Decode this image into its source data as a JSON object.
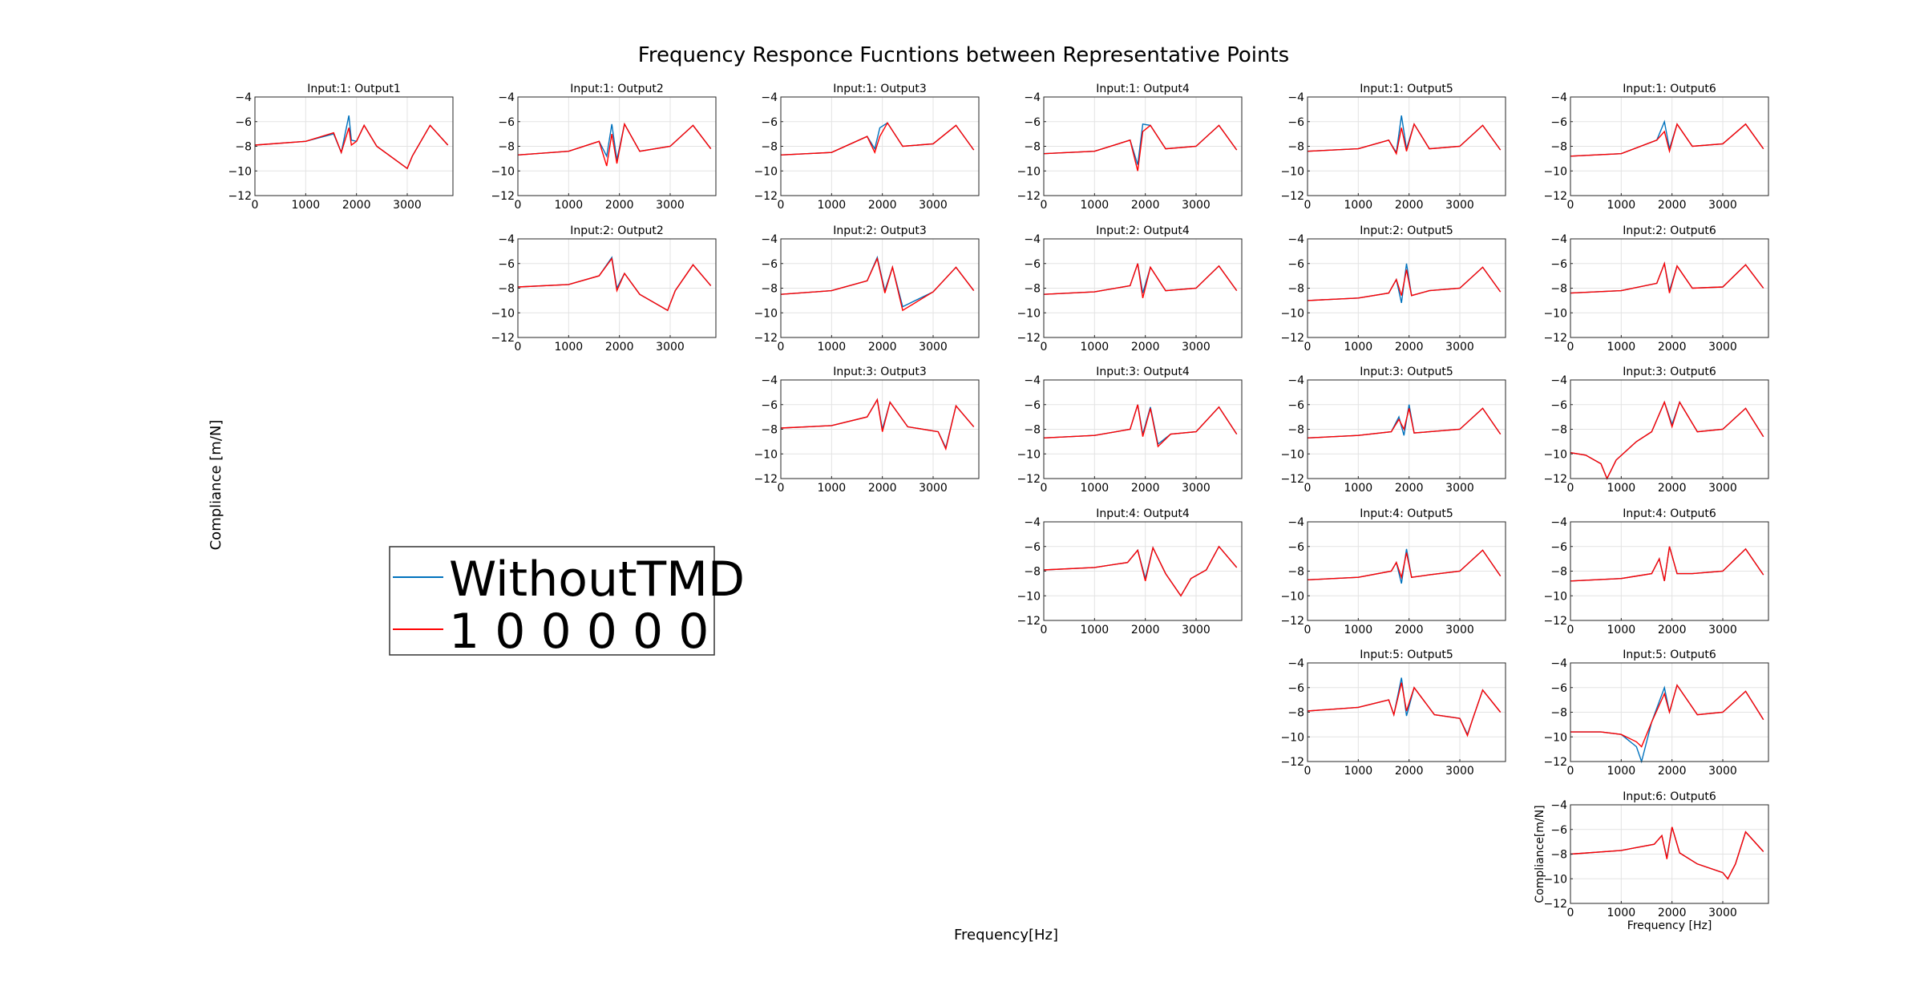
{
  "figure": {
    "title": "Frequency Responce Fucntions between Representative Points",
    "xlabel": "Frequency[Hz]",
    "ylabel": "Compliance [m/N]"
  },
  "legend": {
    "entries": [
      {
        "label": "WithoutTMD",
        "color": "#0072BD"
      },
      {
        "label": "1 0 0 0 0 0",
        "color": "#FF0000"
      }
    ]
  },
  "colors": {
    "without_tmd": "#0072BD",
    "with_tmd": "#FF0000",
    "grid": "#e3e3e3"
  },
  "chart_data": {
    "type": "line",
    "series_names": [
      "WithoutTMD",
      "1 0 0 0 0 0"
    ],
    "xlim": [
      0,
      3900
    ],
    "ylim": [
      -12,
      -4
    ],
    "xticks": [
      0,
      1000,
      2000,
      3000
    ],
    "yticks": [
      -4,
      -6,
      -8,
      -10,
      -12
    ],
    "grid": true,
    "panels": [
      {
        "input": 1,
        "output": 1,
        "title": "Input:1: Output1",
        "x": [
          0,
          1000,
          1550,
          1700,
          1850,
          1900,
          2000,
          2150,
          2400,
          3000,
          3100,
          3450,
          3800
        ],
        "without_tmd": [
          -7.9,
          -7.6,
          -7.0,
          -8.5,
          -5.5,
          -7.5,
          -7.6,
          -6.3,
          -8.0,
          -9.8,
          -8.8,
          -6.3,
          -7.9
        ],
        "with_tmd": [
          -7.9,
          -7.6,
          -6.9,
          -8.5,
          -6.5,
          -7.9,
          -7.6,
          -6.3,
          -8.0,
          -9.8,
          -8.8,
          -6.3,
          -7.9
        ]
      },
      {
        "input": 1,
        "output": 2,
        "title": "Input:1: Output2",
        "x": [
          0,
          1000,
          1600,
          1750,
          1850,
          1950,
          2100,
          2400,
          3000,
          3450,
          3800
        ],
        "without_tmd": [
          -8.7,
          -8.4,
          -7.6,
          -8.8,
          -6.2,
          -9.1,
          -6.2,
          -8.4,
          -8.0,
          -6.3,
          -8.2
        ],
        "with_tmd": [
          -8.7,
          -8.4,
          -7.6,
          -9.6,
          -7.0,
          -9.4,
          -6.2,
          -8.4,
          -8.0,
          -6.3,
          -8.2
        ]
      },
      {
        "input": 1,
        "output": 3,
        "title": "Input:1: Output3",
        "x": [
          0,
          1000,
          1700,
          1850,
          1950,
          2100,
          2400,
          3000,
          3450,
          3800
        ],
        "without_tmd": [
          -8.7,
          -8.5,
          -7.2,
          -8.2,
          -6.5,
          -6.1,
          -8.0,
          -7.8,
          -6.3,
          -8.3
        ],
        "with_tmd": [
          -8.7,
          -8.5,
          -7.2,
          -8.5,
          -7.2,
          -6.1,
          -8.0,
          -7.8,
          -6.3,
          -8.3
        ]
      },
      {
        "input": 1,
        "output": 4,
        "title": "Input:1: Output4",
        "x": [
          0,
          1000,
          1700,
          1850,
          1950,
          2100,
          2400,
          3000,
          3450,
          3800
        ],
        "without_tmd": [
          -8.6,
          -8.4,
          -7.5,
          -9.5,
          -6.2,
          -6.3,
          -8.2,
          -8.0,
          -6.3,
          -8.3
        ],
        "with_tmd": [
          -8.6,
          -8.4,
          -7.5,
          -10.0,
          -6.8,
          -6.3,
          -8.2,
          -8.0,
          -6.3,
          -8.3
        ]
      },
      {
        "input": 1,
        "output": 5,
        "title": "Input:1: Output5",
        "x": [
          0,
          1000,
          1600,
          1750,
          1850,
          1950,
          2100,
          2400,
          3000,
          3450,
          3800
        ],
        "without_tmd": [
          -8.4,
          -8.2,
          -7.5,
          -8.5,
          -5.5,
          -8.2,
          -6.2,
          -8.2,
          -8.0,
          -6.3,
          -8.3
        ],
        "with_tmd": [
          -8.4,
          -8.2,
          -7.5,
          -8.6,
          -6.5,
          -8.4,
          -6.2,
          -8.2,
          -8.0,
          -6.3,
          -8.3
        ]
      },
      {
        "input": 1,
        "output": 6,
        "title": "Input:1: Output6",
        "x": [
          0,
          1000,
          1700,
          1850,
          1950,
          2100,
          2400,
          3000,
          3450,
          3800
        ],
        "without_tmd": [
          -8.8,
          -8.6,
          -7.5,
          -6.0,
          -8.2,
          -6.2,
          -8.0,
          -7.8,
          -6.2,
          -8.2
        ],
        "with_tmd": [
          -8.8,
          -8.6,
          -7.5,
          -6.8,
          -8.4,
          -6.2,
          -8.0,
          -7.8,
          -6.2,
          -8.2
        ]
      },
      {
        "input": 2,
        "output": 2,
        "title": "Input:2: Output2",
        "x": [
          0,
          1000,
          1600,
          1850,
          1950,
          2100,
          2400,
          2950,
          3100,
          3450,
          3800
        ],
        "without_tmd": [
          -7.9,
          -7.7,
          -7.0,
          -5.5,
          -8.0,
          -6.8,
          -8.5,
          -9.8,
          -8.2,
          -6.1,
          -7.8
        ],
        "with_tmd": [
          -7.9,
          -7.7,
          -7.0,
          -5.6,
          -8.2,
          -6.8,
          -8.5,
          -9.8,
          -8.2,
          -6.1,
          -7.8
        ]
      },
      {
        "input": 2,
        "output": 3,
        "title": "Input:2: Output3",
        "x": [
          0,
          1000,
          1700,
          1900,
          2050,
          2200,
          2400,
          3000,
          3450,
          3800
        ],
        "without_tmd": [
          -8.5,
          -8.2,
          -7.4,
          -5.5,
          -8.2,
          -6.3,
          -9.5,
          -8.3,
          -6.3,
          -8.2
        ],
        "with_tmd": [
          -8.5,
          -8.2,
          -7.4,
          -5.6,
          -8.4,
          -6.3,
          -9.8,
          -8.3,
          -6.3,
          -8.2
        ]
      },
      {
        "input": 2,
        "output": 4,
        "title": "Input:2: Output4",
        "x": [
          0,
          1000,
          1700,
          1850,
          1950,
          2100,
          2400,
          3000,
          3450,
          3800
        ],
        "without_tmd": [
          -8.5,
          -8.3,
          -7.8,
          -6.0,
          -8.4,
          -6.3,
          -8.2,
          -8.0,
          -6.2,
          -8.2
        ],
        "with_tmd": [
          -8.5,
          -8.3,
          -7.8,
          -6.0,
          -8.8,
          -6.3,
          -8.2,
          -8.0,
          -6.2,
          -8.2
        ]
      },
      {
        "input": 2,
        "output": 5,
        "title": "Input:2: Output5",
        "x": [
          0,
          1000,
          1600,
          1750,
          1850,
          1950,
          2050,
          2400,
          3000,
          3450,
          3800
        ],
        "without_tmd": [
          -9.0,
          -8.8,
          -8.4,
          -7.3,
          -9.2,
          -6.0,
          -8.6,
          -8.2,
          -8.0,
          -6.3,
          -8.3
        ],
        "with_tmd": [
          -9.0,
          -8.8,
          -8.4,
          -7.3,
          -8.6,
          -6.5,
          -8.6,
          -8.2,
          -8.0,
          -6.3,
          -8.3
        ]
      },
      {
        "input": 2,
        "output": 6,
        "title": "Input:2: Output6",
        "x": [
          0,
          1000,
          1700,
          1850,
          1950,
          2100,
          2400,
          3000,
          3450,
          3800
        ],
        "without_tmd": [
          -8.4,
          -8.2,
          -7.6,
          -6.0,
          -8.2,
          -6.2,
          -8.0,
          -7.9,
          -6.1,
          -8.0
        ],
        "with_tmd": [
          -8.4,
          -8.2,
          -7.6,
          -6.0,
          -8.4,
          -6.2,
          -8.0,
          -7.9,
          -6.1,
          -8.0
        ]
      },
      {
        "input": 3,
        "output": 3,
        "title": "Input:3: Output3",
        "x": [
          0,
          1000,
          1700,
          1900,
          2000,
          2150,
          2500,
          3100,
          3250,
          3450,
          3800
        ],
        "without_tmd": [
          -7.9,
          -7.7,
          -7.0,
          -5.6,
          -8.0,
          -5.8,
          -7.8,
          -8.2,
          -9.5,
          -6.1,
          -7.8
        ],
        "with_tmd": [
          -7.9,
          -7.7,
          -7.0,
          -5.6,
          -8.2,
          -5.8,
          -7.8,
          -8.2,
          -9.6,
          -6.1,
          -7.8
        ]
      },
      {
        "input": 3,
        "output": 4,
        "title": "Input:3: Output4",
        "x": [
          0,
          1000,
          1700,
          1850,
          1950,
          2100,
          2250,
          2500,
          3000,
          3450,
          3800
        ],
        "without_tmd": [
          -8.7,
          -8.5,
          -8.0,
          -6.0,
          -8.4,
          -6.2,
          -9.2,
          -8.4,
          -8.2,
          -6.2,
          -8.4
        ],
        "with_tmd": [
          -8.7,
          -8.5,
          -8.0,
          -6.0,
          -8.6,
          -6.3,
          -9.4,
          -8.4,
          -8.2,
          -6.2,
          -8.4
        ]
      },
      {
        "input": 3,
        "output": 5,
        "title": "Input:3: Output5",
        "x": [
          0,
          1000,
          1650,
          1800,
          1900,
          2000,
          2100,
          2400,
          3000,
          3450,
          3800
        ],
        "without_tmd": [
          -8.7,
          -8.5,
          -8.2,
          -7.0,
          -8.5,
          -6.0,
          -8.3,
          -8.2,
          -8.0,
          -6.3,
          -8.4
        ],
        "with_tmd": [
          -8.7,
          -8.5,
          -8.2,
          -7.2,
          -8.0,
          -6.3,
          -8.3,
          -8.2,
          -8.0,
          -6.3,
          -8.4
        ]
      },
      {
        "input": 3,
        "output": 6,
        "title": "Input:3: Output6",
        "x": [
          0,
          300,
          600,
          720,
          900,
          1300,
          1600,
          1850,
          2000,
          2150,
          2500,
          3000,
          3450,
          3800
        ],
        "without_tmd": [
          -9.9,
          -10.1,
          -10.8,
          -12.0,
          -10.5,
          -9.0,
          -8.2,
          -5.8,
          -7.6,
          -5.8,
          -8.2,
          -8.0,
          -6.3,
          -8.6
        ],
        "with_tmd": [
          -9.9,
          -10.1,
          -10.8,
          -12.0,
          -10.5,
          -9.0,
          -8.2,
          -5.8,
          -7.8,
          -5.8,
          -8.2,
          -8.0,
          -6.3,
          -8.6
        ]
      },
      {
        "input": 4,
        "output": 4,
        "title": "Input:4: Output4",
        "x": [
          0,
          1000,
          1650,
          1850,
          2000,
          2150,
          2400,
          2700,
          2900,
          3200,
          3450,
          3800
        ],
        "without_tmd": [
          -7.9,
          -7.7,
          -7.3,
          -6.3,
          -8.6,
          -6.1,
          -8.2,
          -10.0,
          -8.6,
          -7.9,
          -6.0,
          -7.7
        ],
        "with_tmd": [
          -7.9,
          -7.7,
          -7.3,
          -6.3,
          -8.8,
          -6.1,
          -8.2,
          -10.0,
          -8.6,
          -7.9,
          -6.0,
          -7.7
        ]
      },
      {
        "input": 4,
        "output": 5,
        "title": "Input:4: Output5",
        "x": [
          0,
          1000,
          1650,
          1750,
          1850,
          1950,
          2050,
          2400,
          3000,
          3450,
          3800
        ],
        "without_tmd": [
          -8.7,
          -8.5,
          -8.0,
          -7.3,
          -9.0,
          -6.2,
          -8.5,
          -8.3,
          -8.0,
          -6.3,
          -8.4
        ],
        "with_tmd": [
          -8.7,
          -8.5,
          -8.0,
          -7.3,
          -8.5,
          -6.5,
          -8.5,
          -8.3,
          -8.0,
          -6.3,
          -8.4
        ]
      },
      {
        "input": 4,
        "output": 6,
        "title": "Input:4: Output6",
        "x": [
          0,
          1000,
          1600,
          1750,
          1850,
          1950,
          2100,
          2400,
          3000,
          3450,
          3800
        ],
        "without_tmd": [
          -8.8,
          -8.6,
          -8.2,
          -7.0,
          -8.8,
          -6.0,
          -8.2,
          -8.2,
          -8.0,
          -6.2,
          -8.3
        ],
        "with_tmd": [
          -8.8,
          -8.6,
          -8.2,
          -7.0,
          -8.8,
          -6.0,
          -8.2,
          -8.2,
          -8.0,
          -6.2,
          -8.3
        ]
      },
      {
        "input": 5,
        "output": 5,
        "title": "Input:5: Output5",
        "x": [
          0,
          1000,
          1600,
          1700,
          1850,
          1950,
          2100,
          2500,
          3000,
          3150,
          3250,
          3450,
          3800
        ],
        "without_tmd": [
          -7.9,
          -7.6,
          -7.0,
          -8.2,
          -5.2,
          -8.3,
          -6.0,
          -8.2,
          -8.5,
          -9.8,
          -8.6,
          -6.2,
          -8.0
        ],
        "with_tmd": [
          -7.9,
          -7.6,
          -7.0,
          -8.2,
          -5.6,
          -7.9,
          -6.0,
          -8.2,
          -8.5,
          -9.9,
          -8.6,
          -6.2,
          -8.0
        ]
      },
      {
        "input": 5,
        "output": 6,
        "title": "Input:5: Output6",
        "x": [
          0,
          600,
          1000,
          1300,
          1400,
          1600,
          1850,
          1950,
          2100,
          2500,
          3000,
          3450,
          3800
        ],
        "without_tmd": [
          -9.6,
          -9.6,
          -9.8,
          -10.8,
          -12.0,
          -8.8,
          -6.0,
          -8.0,
          -5.8,
          -8.2,
          -8.0,
          -6.3,
          -8.6
        ],
        "with_tmd": [
          -9.6,
          -9.6,
          -9.8,
          -10.4,
          -10.8,
          -8.8,
          -6.5,
          -8.0,
          -5.8,
          -8.2,
          -8.0,
          -6.3,
          -8.6
        ]
      },
      {
        "input": 6,
        "output": 6,
        "title": "Input:6: Output6",
        "x": [
          0,
          1000,
          1650,
          1800,
          1900,
          2000,
          2150,
          2500,
          3000,
          3100,
          3250,
          3450,
          3800
        ],
        "without_tmd": [
          -8.0,
          -7.7,
          -7.2,
          -6.5,
          -8.3,
          -5.8,
          -7.9,
          -8.8,
          -9.5,
          -10.0,
          -8.8,
          -6.2,
          -7.8
        ],
        "with_tmd": [
          -8.0,
          -7.7,
          -7.2,
          -6.5,
          -8.4,
          -5.8,
          -7.9,
          -8.8,
          -9.5,
          -10.0,
          -8.8,
          -6.2,
          -7.8
        ]
      }
    ],
    "panel_axis_labels": {
      "ylabel": "Compliance[m/N]",
      "xlabel": "Frequency [Hz]",
      "on_panel": "6-6"
    }
  }
}
